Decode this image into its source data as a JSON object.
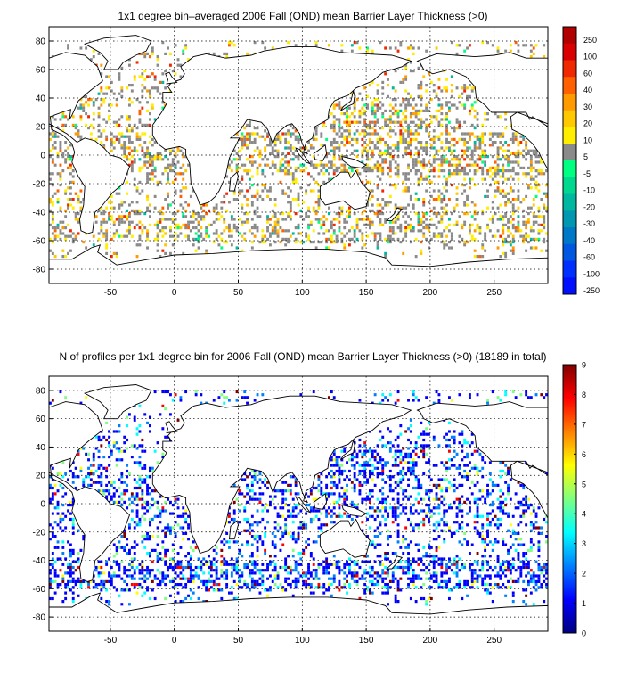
{
  "figure": {
    "top_panel": {
      "title": "1x1 degree bin–averaged 2006 Fall (OND) mean Barrier Layer Thickness (>0)",
      "x_ticks": [
        "-50",
        "0",
        "50",
        "100",
        "150",
        "200",
        "250"
      ],
      "y_ticks": [
        "80",
        "60",
        "40",
        "20",
        "0",
        "-20",
        "-40",
        "-60",
        "-80"
      ],
      "colorbar_labels": [
        "250",
        "100",
        "60",
        "40",
        "30",
        "20",
        "10",
        "5",
        "-5",
        "-10",
        "-20",
        "-30",
        "-40",
        "-60",
        "-100",
        "-250"
      ],
      "colorbar_colors": [
        "#b00000",
        "#d80000",
        "#f02800",
        "#ff6000",
        "#ff9a00",
        "#ffc800",
        "#ffee00",
        "#8a8a8a",
        "#00ff80",
        "#00d890",
        "#00b8a0",
        "#0098b0",
        "#0078c8",
        "#0058e0",
        "#0030ff",
        "#0010ff"
      ]
    },
    "bottom_panel": {
      "title": "N of profiles per 1x1 degree bin for 2006 Fall (OND) mean Barrier Layer Thickness (>0) (18189 in total)",
      "x_ticks": [
        "-50",
        "0",
        "50",
        "100",
        "150",
        "200",
        "250"
      ],
      "y_ticks": [
        "80",
        "60",
        "40",
        "20",
        "0",
        "-20",
        "-40",
        "-60",
        "-80"
      ],
      "colorbar_ticks": [
        "9",
        "8",
        "7",
        "6",
        "5",
        "4",
        "3",
        "2",
        "1",
        "0"
      ],
      "colorbar_colors": [
        "#000080",
        "#0000ff",
        "#0080ff",
        "#00ffff",
        "#80ff80",
        "#ffff00",
        "#ff8000",
        "#ff0000",
        "#800000"
      ]
    }
  },
  "chart_data": [
    {
      "type": "heatmap",
      "title": "1x1 degree bin–averaged 2006 Fall (OND) mean Barrier Layer Thickness (>0)",
      "xlim": [
        -98,
        292
      ],
      "ylim": [
        -90,
        90
      ],
      "colorbar_boundaries": [
        -250,
        -100,
        -60,
        -40,
        -30,
        -20,
        -10,
        -5,
        5,
        10,
        20,
        30,
        40,
        60,
        100,
        250
      ]
    },
    {
      "type": "heatmap",
      "title": "N of profiles per 1x1 degree bin for 2006 Fall (OND) mean Barrier Layer Thickness (>0) (18189 in total)",
      "total_profiles": 18189,
      "xlim": [
        -98,
        292
      ],
      "ylim": [
        -90,
        90
      ],
      "colorbar_range": [
        0,
        9
      ]
    }
  ]
}
